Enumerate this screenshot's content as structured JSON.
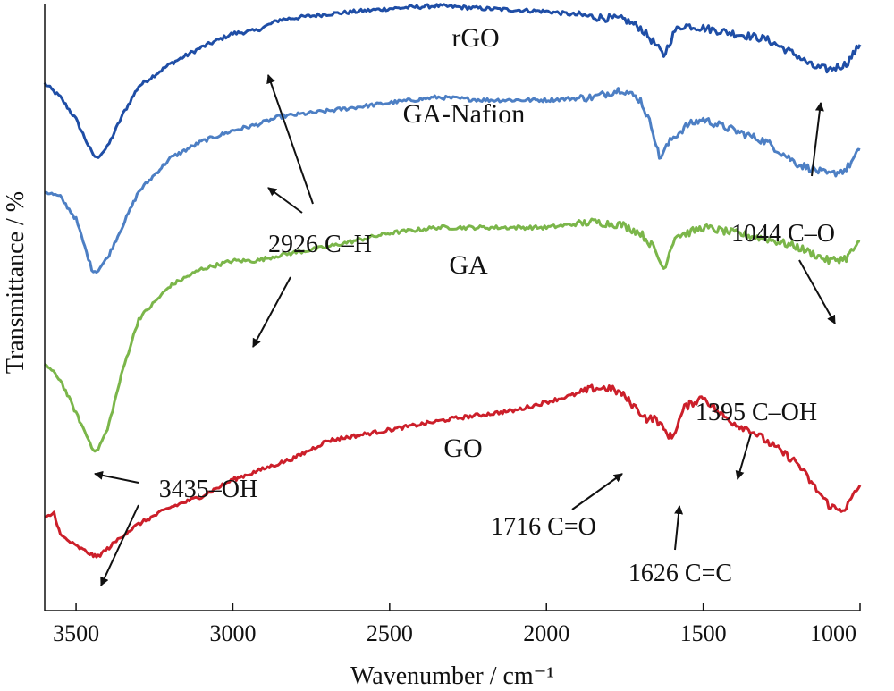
{
  "chart_data": {
    "type": "line",
    "xlabel": "Wavenumber / cm⁻¹",
    "ylabel": "Transmittance / %",
    "xlim": [
      3600,
      1000
    ],
    "x_inverted": true,
    "x_ticks": [
      "3500",
      "3000",
      "2500",
      "2000",
      "1500",
      "1000"
    ],
    "y_ticks_labeled": false,
    "grid": false,
    "series": [
      {
        "name": "rGO",
        "color": "#1f4ea6",
        "x": [
          3600,
          3550,
          3500,
          3450,
          3435,
          3400,
          3350,
          3300,
          3200,
          3100,
          3000,
          2926,
          2850,
          2700,
          2500,
          2350,
          2200,
          2000,
          1850,
          1750,
          1700,
          1660,
          1626,
          1590,
          1560,
          1500,
          1400,
          1300,
          1200,
          1150,
          1100,
          1044,
          1000
        ],
        "y": [
          0.935,
          0.91,
          0.87,
          0.81,
          0.8,
          0.82,
          0.88,
          0.93,
          0.97,
          1.0,
          1.025,
          1.03,
          1.05,
          1.06,
          1.07,
          1.075,
          1.07,
          1.065,
          1.055,
          1.05,
          1.035,
          1.01,
          0.985,
          1.03,
          1.04,
          1.035,
          1.025,
          1.015,
          0.985,
          0.965,
          0.96,
          0.97,
          1.005
        ]
      },
      {
        "name": "GA-Nafion",
        "color": "#4d7fc4",
        "x": [
          3600,
          3550,
          3500,
          3450,
          3435,
          3400,
          3350,
          3300,
          3200,
          3100,
          3000,
          2926,
          2850,
          2700,
          2500,
          2350,
          2200,
          2000,
          1850,
          1760,
          1700,
          1660,
          1640,
          1600,
          1550,
          1500,
          1400,
          1300,
          1200,
          1100,
          1044,
          1000
        ],
        "y": [
          0.74,
          0.73,
          0.69,
          0.6,
          0.595,
          0.62,
          0.68,
          0.74,
          0.8,
          0.83,
          0.85,
          0.86,
          0.875,
          0.885,
          0.9,
          0.91,
          0.905,
          0.905,
          0.91,
          0.925,
          0.905,
          0.85,
          0.8,
          0.835,
          0.86,
          0.87,
          0.85,
          0.83,
          0.79,
          0.77,
          0.78,
          0.815
        ]
      },
      {
        "name": "GA",
        "color": "#7bb64a",
        "x": [
          3600,
          3550,
          3500,
          3450,
          3435,
          3400,
          3350,
          3300,
          3200,
          3100,
          3000,
          2926,
          2850,
          2700,
          2500,
          2350,
          2200,
          2000,
          1850,
          1760,
          1700,
          1660,
          1626,
          1590,
          1550,
          1500,
          1400,
          1300,
          1200,
          1100,
          1044,
          1000
        ],
        "y": [
          0.43,
          0.4,
          0.34,
          0.28,
          0.27,
          0.31,
          0.42,
          0.51,
          0.57,
          0.6,
          0.615,
          0.615,
          0.625,
          0.64,
          0.665,
          0.675,
          0.675,
          0.675,
          0.685,
          0.68,
          0.665,
          0.64,
          0.6,
          0.66,
          0.665,
          0.675,
          0.665,
          0.655,
          0.64,
          0.615,
          0.62,
          0.65
        ]
      },
      {
        "name": "GO",
        "color": "#cc1f2a",
        "x": [
          3600,
          3570,
          3550,
          3500,
          3450,
          3435,
          3400,
          3350,
          3300,
          3200,
          3100,
          3000,
          2900,
          2800,
          2700,
          2500,
          2300,
          2100,
          2000,
          1900,
          1850,
          1800,
          1760,
          1716,
          1680,
          1650,
          1626,
          1600,
          1560,
          1500,
          1450,
          1395,
          1350,
          1300,
          1200,
          1150,
          1100,
          1070,
          1044,
          1000
        ],
        "y": [
          0.15,
          0.16,
          0.12,
          0.1,
          0.085,
          0.08,
          0.095,
          0.12,
          0.14,
          0.17,
          0.19,
          0.22,
          0.24,
          0.26,
          0.29,
          0.31,
          0.33,
          0.345,
          0.36,
          0.375,
          0.385,
          0.385,
          0.375,
          0.35,
          0.33,
          0.33,
          0.31,
          0.295,
          0.35,
          0.37,
          0.34,
          0.32,
          0.31,
          0.29,
          0.25,
          0.21,
          0.175,
          0.165,
          0.17,
          0.21
        ]
      }
    ],
    "annotations": [
      {
        "text": "3435–OH"
      },
      {
        "text": "2926 C–H"
      },
      {
        "text": "1044 C–O"
      },
      {
        "text": "1716 C=O"
      },
      {
        "text": "1626 C=C"
      },
      {
        "text": "1395 C–OH"
      }
    ]
  }
}
